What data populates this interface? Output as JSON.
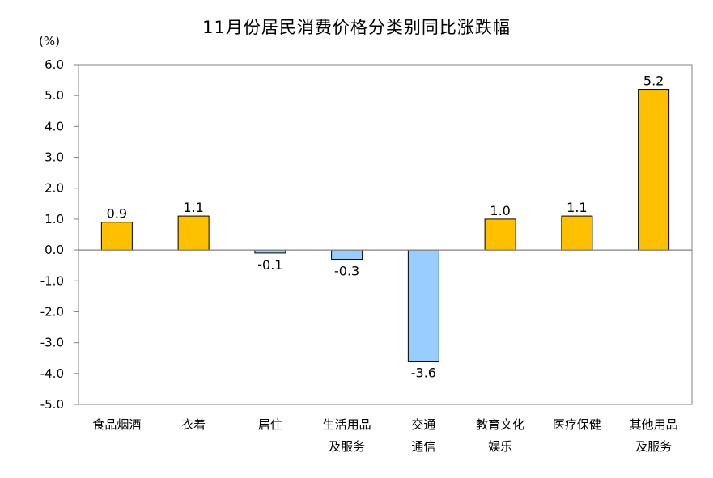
{
  "chart_data": {
    "type": "bar",
    "title": "11月份居民消费价格分类别同比涨跌幅",
    "ylabel": "(%)",
    "xlabel": "",
    "ylim": [
      -5.0,
      6.0
    ],
    "yticks": [
      "6.0",
      "5.0",
      "4.0",
      "3.0",
      "2.0",
      "1.0",
      "0.0",
      "-1.0",
      "-2.0",
      "-3.0",
      "-4.0",
      "-5.0"
    ],
    "categories": [
      [
        "食品烟酒"
      ],
      [
        "衣着"
      ],
      [
        "居住"
      ],
      [
        "生活用品",
        "及服务"
      ],
      [
        "交通",
        "通信"
      ],
      [
        "教育文化",
        "娱乐"
      ],
      [
        "医疗保健"
      ],
      [
        "其他用品",
        "及服务"
      ]
    ],
    "values": [
      0.9,
      1.1,
      -0.1,
      -0.3,
      -3.6,
      1.0,
      1.1,
      5.2
    ],
    "value_labels": [
      "0.9",
      "1.1",
      "-0.1",
      "-0.3",
      "-3.6",
      "1.0",
      "1.1",
      "5.2"
    ],
    "colors": {
      "positive": "#FFC000",
      "negative": "#99CCFF",
      "bar_edge": "#000000"
    },
    "grid": false,
    "legend": "none"
  }
}
